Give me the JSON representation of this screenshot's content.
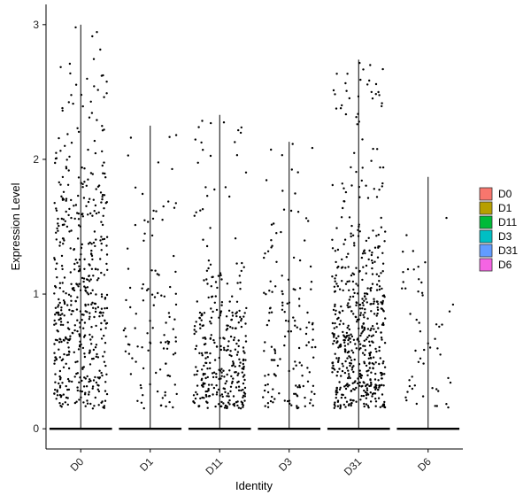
{
  "chart_data": {
    "type": "scatter",
    "subtype": "violin-jitter",
    "xlabel": "Identity",
    "ylabel": "Expression Level",
    "categories": [
      "D0",
      "D1",
      "D11",
      "D3",
      "D31",
      "D6"
    ],
    "ylim": [
      -0.15,
      3.15
    ],
    "yticks": [
      0,
      1,
      2,
      3
    ],
    "grid": false,
    "legend": {
      "position": "right",
      "entries": [
        {
          "label": "D0",
          "color": "#F8766D"
        },
        {
          "label": "D1",
          "color": "#B79F00"
        },
        {
          "label": "D11",
          "color": "#00BA38"
        },
        {
          "label": "D3",
          "color": "#00BFC4"
        },
        {
          "label": "D31",
          "color": "#619CFF"
        },
        {
          "label": "D6",
          "color": "#F564E3"
        }
      ]
    },
    "series": [
      {
        "category": "D0",
        "max": 3.0,
        "n_nonzero": 520,
        "center": 0.9,
        "spread": 0.62
      },
      {
        "category": "D1",
        "max": 2.25,
        "n_nonzero": 110,
        "center": 0.6,
        "spread": 0.5
      },
      {
        "category": "D11",
        "max": 2.33,
        "n_nonzero": 330,
        "center": 0.48,
        "spread": 0.35
      },
      {
        "category": "D3",
        "max": 2.13,
        "n_nonzero": 150,
        "center": 0.55,
        "spread": 0.45
      },
      {
        "category": "D31",
        "max": 2.74,
        "n_nonzero": 560,
        "center": 0.62,
        "spread": 0.42
      },
      {
        "category": "D6",
        "max": 1.87,
        "n_nonzero": 55,
        "center": 0.6,
        "spread": 0.45
      }
    ],
    "colors": {
      "points": "#000000",
      "axis": "#000000"
    }
  }
}
